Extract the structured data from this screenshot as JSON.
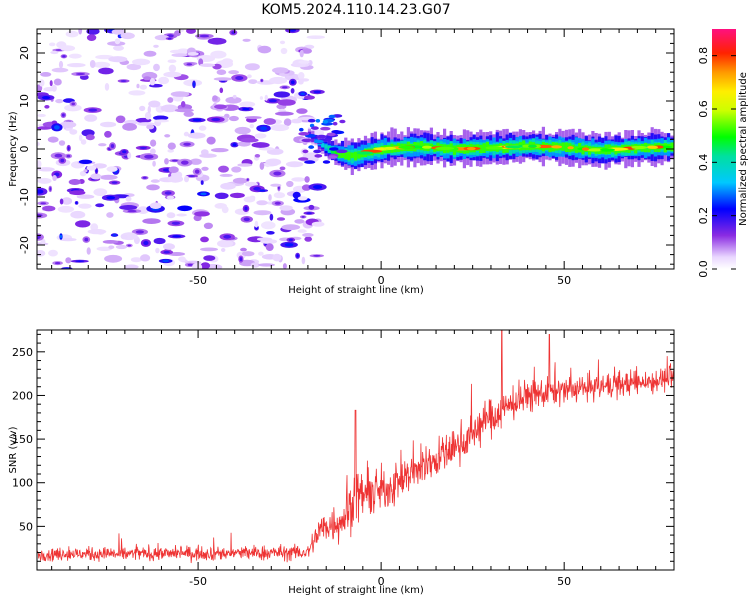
{
  "figure_title": "KOM5.2024.110.14.23.G07",
  "chart_data": [
    {
      "type": "heatmap",
      "xlabel": "Height of straight line (km)",
      "ylabel": "Frequency (Hz)",
      "xlim": [
        -94,
        80
      ],
      "ylim": [
        -25,
        25
      ],
      "xticks": [
        -50,
        0,
        50
      ],
      "yticks": [
        -20,
        -10,
        0,
        10,
        20
      ],
      "colorbar": {
        "label": "Normalized spectral amplitude",
        "range": [
          0,
          0.9
        ],
        "ticks": [
          0.0,
          0.2,
          0.4,
          0.6,
          0.8
        ],
        "colormap": "rainbow (white-lavender-violet-blue-cyan-green-yellow-orange-red-magenta)"
      },
      "description_points": {
        "noise_region_x": [
          -94,
          -20
        ],
        "noise_amplitude": 0.15,
        "signal_ridge": [
          {
            "x": -20,
            "y": 3
          },
          {
            "x": -17,
            "y": 1
          },
          {
            "x": -12,
            "y": -1
          },
          {
            "x": -8,
            "y": -1.5
          },
          {
            "x": 0,
            "y": 0
          },
          {
            "x": 10,
            "y": 0.5
          },
          {
            "x": 20,
            "y": 0
          },
          {
            "x": 30,
            "y": 0.2
          },
          {
            "x": 40,
            "y": 0.6
          },
          {
            "x": 50,
            "y": 0.4
          },
          {
            "x": 60,
            "y": -0.3
          },
          {
            "x": 70,
            "y": 0.3
          },
          {
            "x": 80,
            "y": 0.5
          }
        ],
        "signal_amplitude_peak": 0.8
      }
    },
    {
      "type": "line",
      "xlabel": "Height of straight line (km)",
      "ylabel": "SNR (v/v)",
      "xlim": [
        -94,
        80
      ],
      "ylim": [
        0,
        275
      ],
      "xticks": [
        -50,
        0,
        50
      ],
      "yticks": [
        50,
        100,
        150,
        200,
        250
      ],
      "color": "#ee3333",
      "envelope": [
        {
          "x": -94,
          "mean": 18,
          "spread": 10
        },
        {
          "x": -20,
          "mean": 20,
          "spread": 12
        },
        {
          "x": -17,
          "mean": 45,
          "spread": 25
        },
        {
          "x": -10,
          "mean": 60,
          "spread": 35
        },
        {
          "x": -7,
          "mean": 85,
          "spread": 40
        },
        {
          "x": 0,
          "mean": 90,
          "spread": 35
        },
        {
          "x": 10,
          "mean": 115,
          "spread": 30
        },
        {
          "x": 20,
          "mean": 140,
          "spread": 30
        },
        {
          "x": 30,
          "mean": 175,
          "spread": 30
        },
        {
          "x": 40,
          "mean": 200,
          "spread": 25
        },
        {
          "x": 50,
          "mean": 205,
          "spread": 22
        },
        {
          "x": 60,
          "mean": 210,
          "spread": 20
        },
        {
          "x": 70,
          "mean": 215,
          "spread": 20
        },
        {
          "x": 80,
          "mean": 220,
          "spread": 18
        }
      ],
      "spikes": [
        {
          "x": -7,
          "y": 183
        },
        {
          "x": 33,
          "y": 275
        },
        {
          "x": 46,
          "y": 270
        }
      ]
    }
  ]
}
